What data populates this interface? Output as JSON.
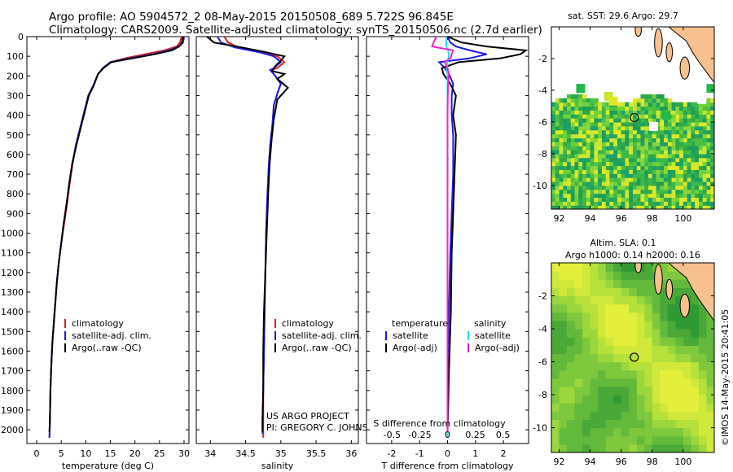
{
  "titles": {
    "line1": "Argo profile: AO 5904572_2 08-May-2015 20150508_689 5.722S 96.845E",
    "line2": "Climatology: CARS2009. Satellite-adjusted climatology: synTS_20150506.nc (2.7d earlier)"
  },
  "timestamp": "©IMOS 14-May-2015 20:41:05",
  "colors": {
    "climatology": "#d42020",
    "satellite": "#1a1ae6",
    "argo": "#000000",
    "sat_salinity": "#22e0ee",
    "argo_salinity": "#ee22cc",
    "land": "#f6c08f",
    "coast": "#000000"
  },
  "depth_axis": {
    "ylim": [
      2070,
      0
    ],
    "ticks": [
      0,
      100,
      200,
      300,
      400,
      500,
      600,
      700,
      800,
      900,
      1000,
      1100,
      1200,
      1300,
      1400,
      1500,
      1600,
      1700,
      1800,
      1900,
      2000
    ]
  },
  "chart_data": [
    {
      "id": "temperature",
      "type": "line",
      "xlabel": "temperature (deg C)",
      "xlim": [
        -2,
        31
      ],
      "xticks": [
        0,
        5,
        10,
        15,
        20,
        25,
        30
      ],
      "legend": [
        "climatology",
        "satellite-adj. clim.",
        "Argo(..raw -QC)"
      ],
      "series": [
        {
          "name": "climatology",
          "color_key": "climatology",
          "x": [
            29.5,
            29.2,
            28.5,
            26,
            22,
            18,
            15,
            13.5,
            12.5,
            11.5,
            10.5,
            10,
            9,
            8,
            7.3,
            6.7,
            6.2,
            5.6,
            5,
            4.5,
            4.1,
            3.8,
            3.5,
            3.2,
            3,
            2.8,
            2.7,
            2.6
          ],
          "y": [
            0,
            30,
            50,
            70,
            90,
            110,
            130,
            160,
            190,
            250,
            300,
            350,
            450,
            550,
            650,
            750,
            850,
            950,
            1050,
            1150,
            1250,
            1350,
            1450,
            1550,
            1650,
            1800,
            1950,
            2040
          ]
        },
        {
          "name": "satellite-adj. clim.",
          "color_key": "satellite",
          "x": [
            30,
            29.8,
            29,
            27,
            23.5,
            19,
            15,
            13.5,
            12.5,
            11.5,
            10.5,
            10,
            9,
            8,
            7.2,
            6.6,
            6.1,
            5.5,
            5,
            4.5,
            4.1,
            3.8,
            3.5,
            3.2,
            3,
            2.8,
            2.7,
            2.6
          ],
          "y": [
            0,
            30,
            50,
            70,
            90,
            110,
            130,
            160,
            190,
            250,
            300,
            350,
            450,
            550,
            650,
            750,
            850,
            950,
            1050,
            1150,
            1250,
            1350,
            1450,
            1550,
            1650,
            1800,
            1950,
            2040
          ]
        },
        {
          "name": "Argo(..raw -QC)",
          "color_key": "argo",
          "x": [
            29.8,
            29.6,
            29,
            27.5,
            24,
            19.5,
            15.2,
            13.6,
            12.5,
            11.6,
            10.6,
            10.1,
            9.1,
            8.1,
            7.2,
            6.6,
            6.1,
            5.5,
            5,
            4.5,
            4.1,
            3.8,
            3.5,
            3.2,
            3,
            2.8,
            2.7,
            2.6
          ],
          "y": [
            0,
            30,
            50,
            70,
            90,
            110,
            130,
            160,
            190,
            250,
            300,
            350,
            450,
            550,
            650,
            750,
            850,
            950,
            1050,
            1150,
            1250,
            1350,
            1450,
            1550,
            1650,
            1800,
            1950,
            2010
          ]
        }
      ]
    },
    {
      "id": "salinity",
      "type": "line",
      "xlabel": "salinity",
      "xlim": [
        33.8,
        36.1
      ],
      "xticks": [
        34,
        34.5,
        35,
        35.5,
        36
      ],
      "legend": [
        "climatology",
        "satellite-adj. clim.",
        "Argo(..raw -QC)"
      ],
      "annotation": [
        "US ARGO PROJECT",
        "PI: GREGORY C. JOHNSON"
      ],
      "series": [
        {
          "name": "climatology",
          "color_key": "climatology",
          "x": [
            34.2,
            34.25,
            34.4,
            34.7,
            34.95,
            35.05,
            34.95,
            34.85,
            34.9,
            35.0,
            34.95,
            34.9,
            34.88,
            34.85,
            34.83,
            34.81,
            34.79,
            34.78,
            34.77,
            34.76,
            34.75,
            34.75,
            34.75
          ],
          "y": [
            0,
            30,
            55,
            80,
            100,
            130,
            160,
            170,
            190,
            240,
            290,
            350,
            450,
            550,
            650,
            800,
            1000,
            1200,
            1400,
            1600,
            1800,
            1950,
            2040
          ]
        },
        {
          "name": "satellite-adj. clim.",
          "color_key": "satellite",
          "x": [
            34.1,
            34.15,
            34.35,
            34.7,
            34.9,
            35.0,
            34.9,
            34.85,
            34.9,
            35.0,
            34.95,
            34.9,
            34.88,
            34.85,
            34.83,
            34.81,
            34.79,
            34.78,
            34.77,
            34.76,
            34.75,
            34.74,
            34.74
          ],
          "y": [
            0,
            30,
            55,
            80,
            100,
            130,
            160,
            170,
            190,
            240,
            290,
            350,
            450,
            550,
            650,
            800,
            1000,
            1200,
            1400,
            1600,
            1800,
            1950,
            2020
          ]
        },
        {
          "name": "Argo(..raw -QC)",
          "color_key": "argo",
          "x": [
            33.95,
            34.05,
            34.45,
            34.8,
            35.05,
            34.98,
            34.92,
            34.88,
            35.05,
            34.95,
            35.1,
            34.95,
            34.9,
            34.87,
            34.84,
            34.82,
            34.8,
            34.78,
            34.76,
            34.75,
            34.75,
            34.74,
            34.74
          ],
          "y": [
            0,
            30,
            55,
            80,
            100,
            130,
            150,
            175,
            190,
            215,
            260,
            320,
            420,
            520,
            650,
            800,
            1000,
            1200,
            1400,
            1600,
            1800,
            1950,
            2010
          ]
        }
      ]
    },
    {
      "id": "difference",
      "type": "line",
      "xlabel_top": "S difference from climatology",
      "xlabel": "T difference from climatology",
      "xlim": [
        -2.9,
        2.9
      ],
      "xticks": [
        -2,
        -1,
        0,
        1,
        2
      ],
      "sticks": [
        -0.5,
        -0.25,
        0,
        0.25,
        0.5
      ],
      "legend_headers": [
        "temperature",
        "salinity"
      ],
      "legend": [
        "satellite",
        "Argo(-adj)",
        "satellite",
        "Argo(-adj)"
      ],
      "series": [
        {
          "name": "T satellite",
          "color_key": "satellite",
          "x": [
            0,
            0.1,
            0.3,
            0.8,
            1.4,
            0.8,
            -0.3,
            -0.1,
            0.05,
            0.2,
            0.15,
            0.15,
            0.2,
            0.2,
            0.15,
            0.1,
            0.05,
            0,
            0,
            0
          ],
          "y": [
            0,
            30,
            50,
            70,
            90,
            110,
            130,
            160,
            190,
            240,
            300,
            400,
            500,
            700,
            900,
            1100,
            1400,
            1700,
            1900,
            2040
          ]
        },
        {
          "name": "T Argo(-adj)",
          "color_key": "argo",
          "x": [
            0,
            0.5,
            1.4,
            2.8,
            2.6,
            1.9,
            0.4,
            -0.2,
            -0.15,
            0.1,
            0.3,
            0.2,
            0.3,
            0.25,
            0.2,
            0.15,
            0.12,
            0.05,
            0.02,
            0
          ],
          "y": [
            0,
            30,
            50,
            70,
            90,
            110,
            130,
            160,
            190,
            240,
            300,
            400,
            500,
            700,
            900,
            1100,
            1400,
            1700,
            1900,
            2010
          ]
        },
        {
          "name": "S satellite",
          "color_key": "sat_salinity",
          "x": [
            -0.05,
            -0.05,
            -0.04,
            0.02,
            0.05,
            0.03,
            0.0,
            -0.02,
            0,
            0,
            0,
            0,
            0,
            0,
            0,
            0,
            0,
            0,
            0,
            0
          ],
          "y": [
            0,
            30,
            50,
            70,
            90,
            110,
            130,
            160,
            190,
            240,
            300,
            400,
            500,
            700,
            900,
            1100,
            1400,
            1700,
            1900,
            2040
          ]
        },
        {
          "name": "S Argo(-adj)",
          "color_key": "argo_salinity",
          "x": [
            -0.4,
            -0.5,
            -0.55,
            0.2,
            0.15,
            0.1,
            -0.1,
            0.0,
            0.05,
            0.02,
            0.01,
            0,
            0,
            0,
            0,
            0,
            0,
            0,
            0,
            0
          ],
          "y": [
            0,
            30,
            50,
            70,
            90,
            110,
            130,
            160,
            190,
            240,
            300,
            400,
            500,
            700,
            900,
            1100,
            1400,
            1700,
            1900,
            2010
          ]
        }
      ]
    },
    {
      "id": "sst_map",
      "type": "heatmap",
      "title": "sat. SST: 29.6 Argo: 29.7",
      "xlim": [
        91.5,
        102
      ],
      "ylim": [
        -11.5,
        0
      ],
      "xticks": [
        92,
        94,
        96,
        98,
        100
      ],
      "yticks": [
        -2,
        -4,
        -6,
        -8,
        -10
      ],
      "marker": {
        "lon": 96.845,
        "lat": -5.722
      }
    },
    {
      "id": "sla_map",
      "type": "heatmap",
      "title": "Altim. SLA: 0.1",
      "subtitle": "Argo h1000: 0.14 h2000: 0.16",
      "xlim": [
        91.5,
        102
      ],
      "ylim": [
        -11.5,
        0
      ],
      "xticks": [
        92,
        94,
        96,
        98,
        100
      ],
      "yticks": [
        -2,
        -4,
        -6,
        -8,
        -10
      ],
      "marker": {
        "lon": 96.845,
        "lat": -5.722
      }
    }
  ]
}
